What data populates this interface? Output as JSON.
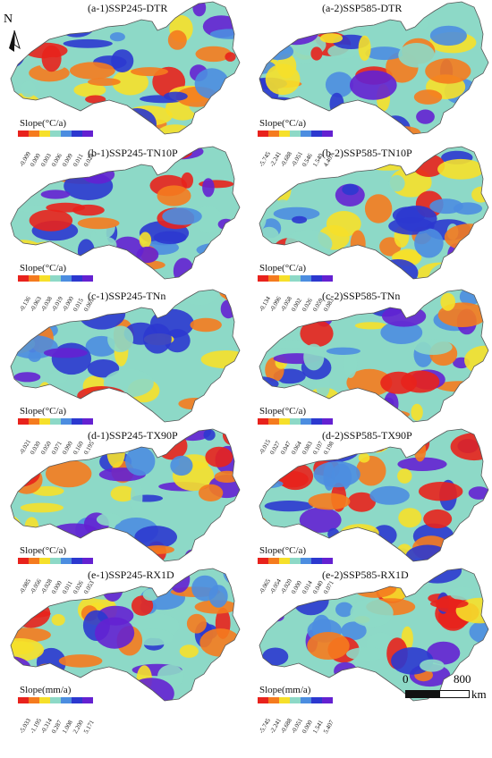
{
  "north_label": "N",
  "scale": {
    "zero": "0",
    "max": "800",
    "unit": "km"
  },
  "legend_colors": [
    "#e8221c",
    "#f57b1e",
    "#f6e02a",
    "#8dd9c7",
    "#4c8de0",
    "#2c38cf",
    "#6421d1"
  ],
  "panels": [
    {
      "title": "(a-1)SSP245-DTR",
      "legend_title": "Slope(°C/a)",
      "ticks": [
        "-0.009",
        "0.000",
        "0.003",
        "0.006",
        "0.009",
        "0.011",
        "0.028"
      ]
    },
    {
      "title": "(a-2)SSP585-DTR",
      "legend_title": "Slope(°C/a)",
      "ticks": [
        "-5.745",
        "-2.241",
        "-0.688",
        "-0.051",
        "0.546",
        "1.540",
        "4.407"
      ]
    },
    {
      "title": "(b-1)SSP245-TN10P",
      "legend_title": "Slope(°C/a)",
      "ticks": [
        "-0.136",
        "-0.063",
        "-0.038",
        "-0.019",
        "-0.000",
        "0.015",
        "0.061"
      ]
    },
    {
      "title": "(b-2)SSP585-TN10P",
      "legend_title": "Slope(°C/a)",
      "ticks": [
        "-0.134",
        "-0.096",
        "-0.058",
        "0.002",
        "0.026",
        "0.059",
        "0.083"
      ]
    },
    {
      "title": "(c-1)SSP245-TNn",
      "legend_title": "Slope(°C/a)",
      "ticks": [
        "-0.021",
        "0.030",
        "0.050",
        "0.071",
        "0.090",
        "0.160",
        "0.195"
      ]
    },
    {
      "title": "(c-2)SSP585-TNn",
      "legend_title": "Slope(°C/a)",
      "ticks": [
        "-0.015",
        "0.027",
        "0.047",
        "0.064",
        "0.083",
        "0.107",
        "0.198"
      ]
    },
    {
      "title": "(d-1)SSP245-TX90P",
      "legend_title": "Slope(°C/a)",
      "ticks": [
        "-0.085",
        "-0.056",
        "-0.028",
        "0.000",
        "0.011",
        "0.026",
        "0.053"
      ]
    },
    {
      "title": "(d-2)SSP585-TX90P",
      "legend_title": "Slope(°C/a)",
      "ticks": [
        "-0.065",
        "-0.054",
        "-0.020",
        "0.000",
        "0.014",
        "0.040",
        "0.071"
      ]
    },
    {
      "title": "(e-1)SSP245-RX1D",
      "legend_title": "Slope(mm/a)",
      "ticks": [
        "-5.033",
        "-1.195",
        "-0.314",
        "0.287",
        "1.008",
        "2.200",
        "5.171"
      ]
    },
    {
      "title": "(e-2)SSP585-RX1D",
      "legend_title": "Slope(mm/a)",
      "ticks": [
        "-5.745",
        "-2.241",
        "-0.688",
        "-0.051",
        "0.000",
        "1.541",
        "5.407"
      ]
    }
  ]
}
